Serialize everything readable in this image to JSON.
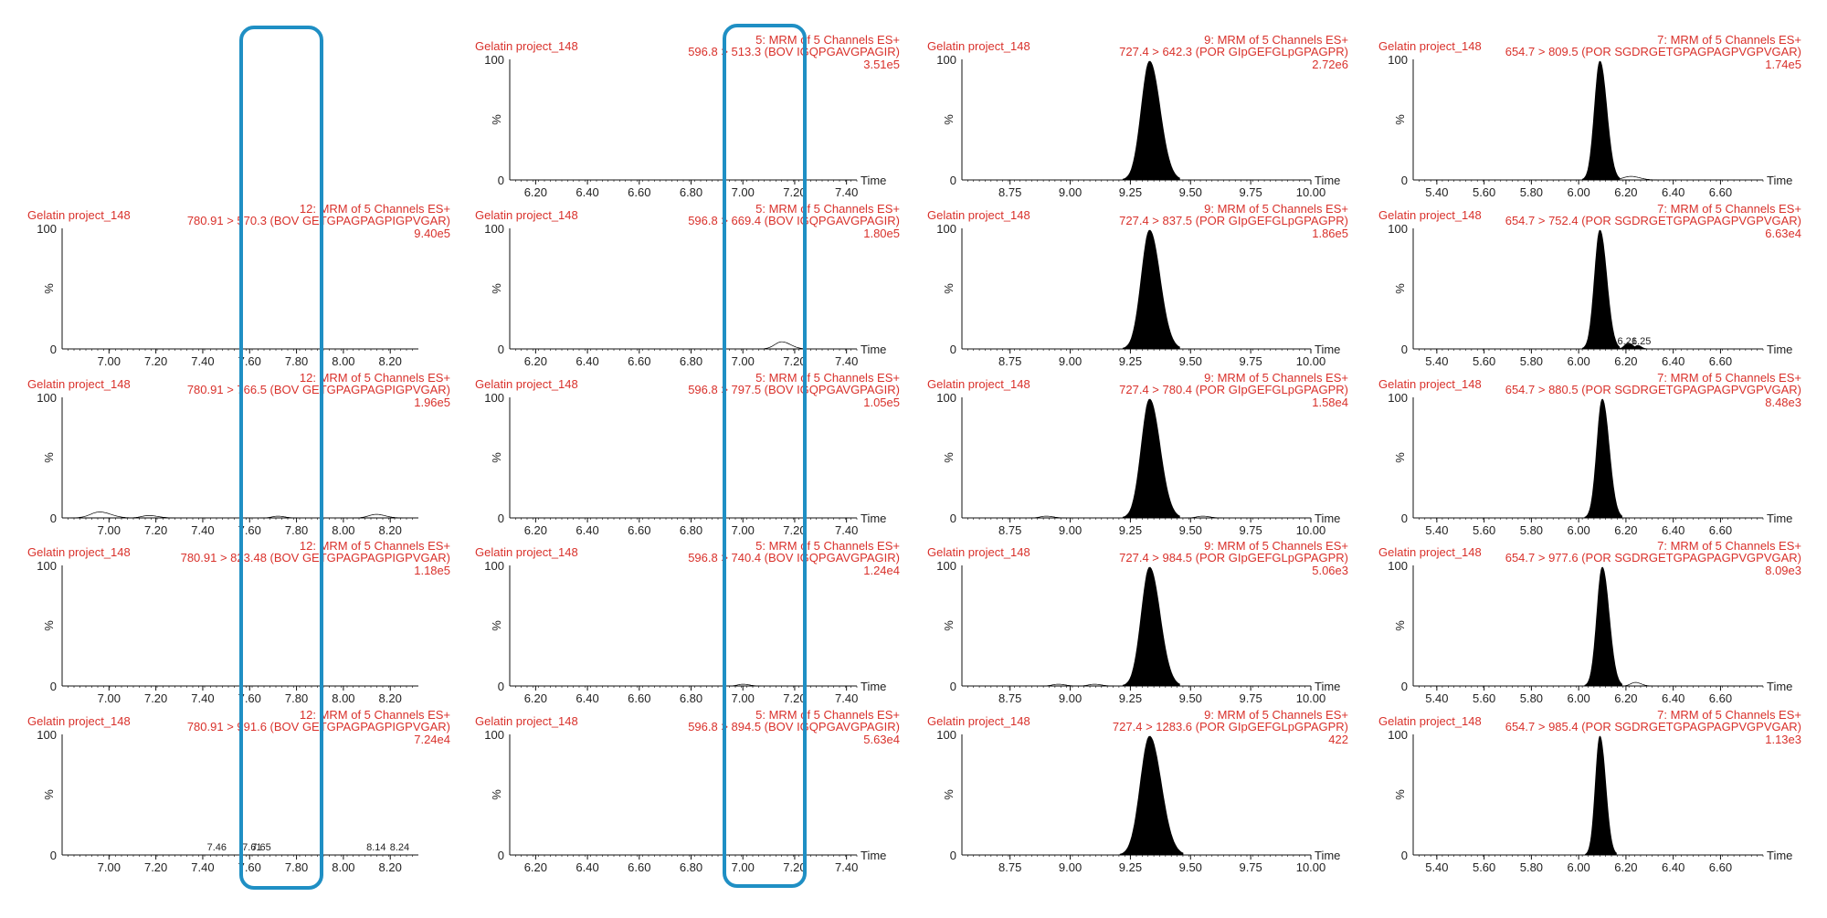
{
  "colors": {
    "label_red": "#d9312b",
    "highlight_blue": "#1f8fc4",
    "trace": "#000000",
    "axis": "#111111"
  },
  "chart_data": [
    {
      "type": "line",
      "column": 1,
      "row": 1,
      "sample": "Gelatin project_148",
      "function": "12: MRM of 5 Channels ES+",
      "transition": "780.91 > 570.3 (BOV GETGPAGPAGPIGPVGAR)",
      "intensity": "9.40e5",
      "xlabel": "",
      "ylabel": "%",
      "xlim": [
        6.8,
        8.32
      ],
      "ylim": [
        0,
        100
      ],
      "xticks": [
        "7.00",
        "7.20",
        "7.40",
        "7.60",
        "7.80",
        "8.00",
        "8.20"
      ],
      "peaks": [],
      "peak_labels": []
    },
    {
      "type": "line",
      "column": 1,
      "row": 2,
      "sample": "Gelatin project_148",
      "function": "12: MRM of 5 Channels ES+",
      "transition": "780.91 > 766.5 (BOV GETGPAGPAGPIGPVGAR)",
      "intensity": "1.96e5",
      "xlabel": "",
      "ylabel": "%",
      "xlim": [
        6.8,
        8.32
      ],
      "ylim": [
        0,
        100
      ],
      "xticks": [
        "7.00",
        "7.20",
        "7.40",
        "7.60",
        "7.80",
        "8.00",
        "8.20"
      ],
      "peaks": [
        {
          "rt": 6.96,
          "height": 5,
          "width": 0.1,
          "filled": false
        },
        {
          "rt": 7.17,
          "height": 2,
          "width": 0.08,
          "filled": false
        },
        {
          "rt": 7.72,
          "height": 1.5,
          "width": 0.06,
          "filled": false
        },
        {
          "rt": 8.14,
          "height": 3,
          "width": 0.08,
          "filled": false
        }
      ],
      "peak_labels": []
    },
    {
      "type": "line",
      "column": 1,
      "row": 3,
      "sample": "Gelatin project_148",
      "function": "12: MRM of 5 Channels ES+",
      "transition": "780.91 > 823.48 (BOV GETGPAGPAGPIGPVGAR)",
      "intensity": "1.18e5",
      "xlabel": "",
      "ylabel": "%",
      "xlim": [
        6.8,
        8.32
      ],
      "ylim": [
        0,
        100
      ],
      "xticks": [
        "7.00",
        "7.20",
        "7.40",
        "7.60",
        "7.80",
        "8.00",
        "8.20"
      ],
      "peaks": [],
      "peak_labels": []
    },
    {
      "type": "line",
      "column": 1,
      "row": 4,
      "sample": "Gelatin project_148",
      "function": "12: MRM of 5 Channels ES+",
      "transition": "780.91 > 991.6 (BOV GETGPAGPAGPIGPVGAR)",
      "intensity": "7.24e4",
      "xlabel": "",
      "ylabel": "%",
      "xlim": [
        6.8,
        8.32
      ],
      "ylim": [
        0,
        100
      ],
      "xticks": [
        "7.00",
        "7.20",
        "7.40",
        "7.60",
        "7.80",
        "8.00",
        "8.20"
      ],
      "peaks": [],
      "peak_labels": [
        {
          "rt": 7.46,
          "text": "7.46"
        },
        {
          "rt": 7.61,
          "text": "7.61"
        },
        {
          "rt": 7.65,
          "text": "7.65"
        },
        {
          "rt": 8.14,
          "text": "8.14"
        },
        {
          "rt": 8.24,
          "text": "8.24"
        }
      ]
    },
    {
      "type": "line",
      "column": 2,
      "row": 0,
      "sample": "Gelatin project_148",
      "function": "5: MRM of 5 Channels ES+",
      "transition": "596.8 > 513.3 (BOV IGQPGAVGPAGIR)",
      "intensity": "3.51e5",
      "xlabel": "Time",
      "ylabel": "%",
      "xlim": [
        6.1,
        7.44
      ],
      "ylim": [
        0,
        100
      ],
      "xticks": [
        "6.20",
        "6.40",
        "6.60",
        "6.80",
        "7.00",
        "7.20",
        "7.40"
      ],
      "peaks": [],
      "peak_labels": []
    },
    {
      "type": "line",
      "column": 2,
      "row": 1,
      "sample": "Gelatin project_148",
      "function": "5: MRM of 5 Channels ES+",
      "transition": "596.8 > 669.4 (BOV IGQPGAVGPAGIR)",
      "intensity": "1.80e5",
      "xlabel": "Time",
      "ylabel": "%",
      "xlim": [
        6.1,
        7.44
      ],
      "ylim": [
        0,
        100
      ],
      "xticks": [
        "6.20",
        "6.40",
        "6.60",
        "6.80",
        "7.00",
        "7.20",
        "7.40"
      ],
      "peaks": [
        {
          "rt": 7.15,
          "height": 6,
          "width": 0.07,
          "filled": false
        }
      ],
      "peak_labels": []
    },
    {
      "type": "line",
      "column": 2,
      "row": 2,
      "sample": "Gelatin project_148",
      "function": "5: MRM of 5 Channels ES+",
      "transition": "596.8 > 797.5 (BOV IGQPGAVGPAGIR)",
      "intensity": "1.05e5",
      "xlabel": "Time",
      "ylabel": "%",
      "xlim": [
        6.1,
        7.44
      ],
      "ylim": [
        0,
        100
      ],
      "xticks": [
        "6.20",
        "6.40",
        "6.60",
        "6.80",
        "7.00",
        "7.20",
        "7.40"
      ],
      "peaks": [],
      "peak_labels": []
    },
    {
      "type": "line",
      "column": 2,
      "row": 3,
      "sample": "Gelatin project_148",
      "function": "5: MRM of 5 Channels ES+",
      "transition": "596.8 > 740.4 (BOV IGQPGAVGPAGIR)",
      "intensity": "1.24e4",
      "xlabel": "Time",
      "ylabel": "%",
      "xlim": [
        6.1,
        7.44
      ],
      "ylim": [
        0,
        100
      ],
      "xticks": [
        "6.20",
        "6.40",
        "6.60",
        "6.80",
        "7.00",
        "7.20",
        "7.40"
      ],
      "peaks": [
        {
          "rt": 7.0,
          "height": 1.5,
          "width": 0.05,
          "filled": false
        }
      ],
      "peak_labels": []
    },
    {
      "type": "line",
      "column": 2,
      "row": 4,
      "sample": "Gelatin project_148",
      "function": "5: MRM of 5 Channels ES+",
      "transition": "596.8 > 894.5 (BOV IGQPGAVGPAGIR)",
      "intensity": "5.63e4",
      "xlabel": "Time",
      "ylabel": "%",
      "xlim": [
        6.1,
        7.44
      ],
      "ylim": [
        0,
        100
      ],
      "xticks": [
        "6.20",
        "6.40",
        "6.60",
        "6.80",
        "7.00",
        "7.20",
        "7.40"
      ],
      "peaks": [],
      "peak_labels": []
    },
    {
      "type": "area",
      "column": 3,
      "row": 0,
      "sample": "Gelatin project_148",
      "function": "9: MRM of 5 Channels ES+",
      "transition": "727.4 > 642.3 (POR GIpGEFGLpGPAGPR)",
      "intensity": "2.72e6",
      "xlabel": "Time",
      "ylabel": "%",
      "xlim": [
        8.55,
        10.0
      ],
      "ylim": [
        0,
        100
      ],
      "xticks": [
        "8.75",
        "9.00",
        "9.25",
        "9.50",
        "9.75",
        "10.00"
      ],
      "peaks": [
        {
          "rt": 9.33,
          "height": 100,
          "width": 0.09,
          "filled": true
        }
      ],
      "peak_labels": []
    },
    {
      "type": "area",
      "column": 3,
      "row": 1,
      "sample": "Gelatin project_148",
      "function": "9: MRM of 5 Channels ES+",
      "transition": "727.4 > 837.5 (POR GIpGEFGLpGPAGPR)",
      "intensity": "1.86e5",
      "xlabel": "Time",
      "ylabel": "%",
      "xlim": [
        8.55,
        10.0
      ],
      "ylim": [
        0,
        100
      ],
      "xticks": [
        "8.75",
        "9.00",
        "9.25",
        "9.50",
        "9.75",
        "10.00"
      ],
      "peaks": [
        {
          "rt": 9.33,
          "height": 100,
          "width": 0.09,
          "filled": true
        }
      ],
      "peak_labels": []
    },
    {
      "type": "area",
      "column": 3,
      "row": 2,
      "sample": "Gelatin project_148",
      "function": "9: MRM of 5 Channels ES+",
      "transition": "727.4 > 780.4 (POR GIpGEFGLpGPAGPR)",
      "intensity": "1.58e4",
      "xlabel": "Time",
      "ylabel": "%",
      "xlim": [
        8.55,
        10.0
      ],
      "ylim": [
        0,
        100
      ],
      "xticks": [
        "8.75",
        "9.00",
        "9.25",
        "9.50",
        "9.75",
        "10.00"
      ],
      "peaks": [
        {
          "rt": 9.33,
          "height": 100,
          "width": 0.09,
          "filled": true
        },
        {
          "rt": 8.9,
          "height": 1.5,
          "width": 0.06,
          "filled": false
        },
        {
          "rt": 9.55,
          "height": 1.5,
          "width": 0.06,
          "filled": false
        }
      ],
      "peak_labels": []
    },
    {
      "type": "area",
      "column": 3,
      "row": 3,
      "sample": "Gelatin project_148",
      "function": "9: MRM of 5 Channels ES+",
      "transition": "727.4 > 984.5 (POR GIpGEFGLpGPAGPR)",
      "intensity": "5.06e3",
      "xlabel": "Time",
      "ylabel": "%",
      "xlim": [
        8.55,
        10.0
      ],
      "ylim": [
        0,
        100
      ],
      "xticks": [
        "8.75",
        "9.00",
        "9.25",
        "9.50",
        "9.75",
        "10.00"
      ],
      "peaks": [
        {
          "rt": 9.33,
          "height": 100,
          "width": 0.09,
          "filled": true
        },
        {
          "rt": 8.95,
          "height": 1.5,
          "width": 0.06,
          "filled": false
        },
        {
          "rt": 9.1,
          "height": 1.5,
          "width": 0.06,
          "filled": false
        }
      ],
      "peak_labels": []
    },
    {
      "type": "area",
      "column": 3,
      "row": 4,
      "sample": "Gelatin project_148",
      "function": "9: MRM of 5 Channels ES+",
      "transition": "727.4 > 1283.6 (POR GIpGEFGLpGPAGPR)",
      "intensity": "422",
      "xlabel": "Time",
      "ylabel": "%",
      "xlim": [
        8.55,
        10.0
      ],
      "ylim": [
        0,
        100
      ],
      "xticks": [
        "8.75",
        "9.00",
        "9.25",
        "9.50",
        "9.75",
        "10.00"
      ],
      "peaks": [
        {
          "rt": 9.33,
          "height": 100,
          "width": 0.1,
          "filled": true
        }
      ],
      "peak_labels": []
    },
    {
      "type": "area",
      "column": 4,
      "row": 0,
      "sample": "Gelatin project_148",
      "function": "7: MRM of 5 Channels ES+",
      "transition": "654.7 > 809.5 (POR SGDRGETGPAGPAGPVGPVGAR)",
      "intensity": "1.74e5",
      "xlabel": "Time",
      "ylabel": "%",
      "xlim": [
        5.3,
        6.78
      ],
      "ylim": [
        0,
        100
      ],
      "xticks": [
        "5.40",
        "5.60",
        "5.80",
        "6.00",
        "6.20",
        "6.40",
        "6.60"
      ],
      "peaks": [
        {
          "rt": 6.09,
          "height": 100,
          "width": 0.06,
          "filled": true
        },
        {
          "rt": 6.22,
          "height": 3,
          "width": 0.08,
          "filled": false
        }
      ],
      "peak_labels": []
    },
    {
      "type": "area",
      "column": 4,
      "row": 1,
      "sample": "Gelatin project_148",
      "function": "7: MRM of 5 Channels ES+",
      "transition": "654.7 > 752.4 (POR SGDRGETGPAGPAGPVGPVGAR)",
      "intensity": "6.63e4",
      "xlabel": "Time",
      "ylabel": "%",
      "xlim": [
        5.3,
        6.78
      ],
      "ylim": [
        0,
        100
      ],
      "xticks": [
        "5.40",
        "5.60",
        "5.80",
        "6.00",
        "6.20",
        "6.40",
        "6.60"
      ],
      "peaks": [
        {
          "rt": 6.09,
          "height": 100,
          "width": 0.06,
          "filled": true
        },
        {
          "rt": 6.21,
          "height": 5,
          "width": 0.04,
          "filled": true
        },
        {
          "rt": 6.25,
          "height": 3,
          "width": 0.03,
          "filled": true
        }
      ],
      "peak_labels": [
        {
          "rt": 6.205,
          "text": "6.21"
        },
        {
          "rt": 6.265,
          "text": "6.25"
        }
      ]
    },
    {
      "type": "area",
      "column": 4,
      "row": 2,
      "sample": "Gelatin project_148",
      "function": "7: MRM of 5 Channels ES+",
      "transition": "654.7 > 880.5 (POR SGDRGETGPAGPAGPVGPVGAR)",
      "intensity": "8.48e3",
      "xlabel": "Time",
      "ylabel": "%",
      "xlim": [
        5.3,
        6.78
      ],
      "ylim": [
        0,
        100
      ],
      "xticks": [
        "5.40",
        "5.60",
        "5.80",
        "6.00",
        "6.20",
        "6.40",
        "6.60"
      ],
      "peaks": [
        {
          "rt": 6.1,
          "height": 100,
          "width": 0.06,
          "filled": true
        }
      ],
      "peak_labels": []
    },
    {
      "type": "area",
      "column": 4,
      "row": 3,
      "sample": "Gelatin project_148",
      "function": "7: MRM of 5 Channels ES+",
      "transition": "654.7 > 977.6 (POR SGDRGETGPAGPAGPVGPVGAR)",
      "intensity": "8.09e3",
      "xlabel": "Time",
      "ylabel": "%",
      "xlim": [
        5.3,
        6.78
      ],
      "ylim": [
        0,
        100
      ],
      "xticks": [
        "5.40",
        "5.60",
        "5.80",
        "6.00",
        "6.20",
        "6.40",
        "6.60"
      ],
      "peaks": [
        {
          "rt": 6.1,
          "height": 100,
          "width": 0.06,
          "filled": true
        },
        {
          "rt": 6.24,
          "height": 3,
          "width": 0.05,
          "filled": false
        }
      ],
      "peak_labels": []
    },
    {
      "type": "area",
      "column": 4,
      "row": 4,
      "sample": "Gelatin project_148",
      "function": "7: MRM of 5 Channels ES+",
      "transition": "654.7 > 985.4 (POR SGDRGETGPAGPAGPVGPVGAR)",
      "intensity": "1.13e3",
      "xlabel": "Time",
      "ylabel": "%",
      "xlim": [
        5.3,
        6.78
      ],
      "ylim": [
        0,
        100
      ],
      "xticks": [
        "5.40",
        "5.60",
        "5.80",
        "6.00",
        "6.20",
        "6.40",
        "6.60"
      ],
      "peaks": [
        {
          "rt": 6.09,
          "height": 100,
          "width": 0.05,
          "filled": true
        }
      ],
      "peak_labels": []
    }
  ]
}
